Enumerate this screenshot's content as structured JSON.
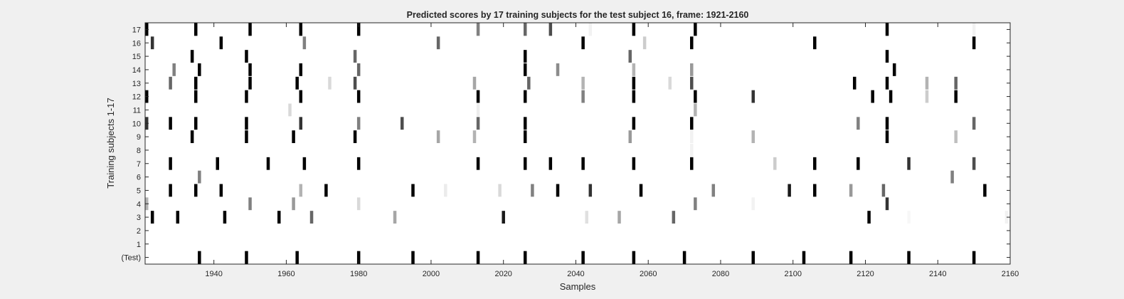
{
  "chart_data": {
    "type": "heatmap",
    "title": "Predicted scores by 17 training subjects for the test subject 16, frame: 1921-2160",
    "xlabel": "Samples",
    "ylabel": "Training subjects 1-17",
    "xlim": [
      1921,
      2160
    ],
    "x_ticks": [
      1940,
      1960,
      1980,
      2000,
      2020,
      2040,
      2060,
      2080,
      2100,
      2120,
      2140,
      2160
    ],
    "rows": [
      "17",
      "16",
      "15",
      "14",
      "13",
      "12",
      "11",
      "10",
      "9",
      "8",
      "7",
      "6",
      "5",
      "4",
      "3",
      "2",
      "1",
      "(Test)"
    ],
    "colormap": "gray, higher score = darker",
    "grid": false,
    "background_color": "#ffffff",
    "figure_color": "#f0f0f0",
    "marks": [
      {
        "row": "17",
        "cells": [
          [
            1921,
            1.0
          ],
          [
            1935,
            1.0
          ],
          [
            1950,
            1.0
          ],
          [
            1964,
            1.0
          ],
          [
            1980,
            1.0
          ],
          [
            2013,
            0.5
          ],
          [
            2026,
            0.6
          ],
          [
            2033,
            0.7
          ],
          [
            2044,
            0.05
          ],
          [
            2056,
            1.0
          ],
          [
            2073,
            1.0
          ],
          [
            2126,
            1.0
          ],
          [
            2150,
            0.05
          ]
        ]
      },
      {
        "row": "16",
        "cells": [
          [
            1923,
            0.8
          ],
          [
            1942,
            1.0
          ],
          [
            1965,
            0.5
          ],
          [
            2002,
            0.6
          ],
          [
            2042,
            1.0
          ],
          [
            2059,
            0.2
          ],
          [
            2072,
            1.0
          ],
          [
            2106,
            1.0
          ],
          [
            2150,
            1.0
          ]
        ]
      },
      {
        "row": "15",
        "cells": [
          [
            1934,
            1.0
          ],
          [
            1949,
            1.0
          ],
          [
            1979,
            0.6
          ],
          [
            2026,
            1.0
          ],
          [
            2055,
            0.6
          ],
          [
            2126,
            1.0
          ]
        ]
      },
      {
        "row": "14",
        "cells": [
          [
            1929,
            0.5
          ],
          [
            1936,
            1.0
          ],
          [
            1950,
            1.0
          ],
          [
            1964,
            1.0
          ],
          [
            1980,
            0.6
          ],
          [
            2026,
            1.0
          ],
          [
            2035,
            0.45
          ],
          [
            2056,
            0.3
          ],
          [
            2072,
            0.4
          ],
          [
            2128,
            1.0
          ]
        ]
      },
      {
        "row": "13",
        "cells": [
          [
            1928,
            0.6
          ],
          [
            1935,
            1.0
          ],
          [
            1950,
            1.0
          ],
          [
            1963,
            1.0
          ],
          [
            1972,
            0.15
          ],
          [
            1979,
            0.7
          ],
          [
            2012,
            0.35
          ],
          [
            2027,
            0.6
          ],
          [
            2042,
            0.3
          ],
          [
            2056,
            1.0
          ],
          [
            2066,
            0.15
          ],
          [
            2072,
            0.7
          ],
          [
            2117,
            1.0
          ],
          [
            2126,
            1.0
          ],
          [
            2137,
            0.3
          ],
          [
            2145,
            0.6
          ]
        ]
      },
      {
        "row": "12",
        "cells": [
          [
            1921,
            1.0
          ],
          [
            1935,
            1.0
          ],
          [
            1949,
            1.0
          ],
          [
            1964,
            1.0
          ],
          [
            1980,
            1.0
          ],
          [
            2013,
            1.0
          ],
          [
            2026,
            1.0
          ],
          [
            2042,
            0.5
          ],
          [
            2056,
            1.0
          ],
          [
            2073,
            1.0
          ],
          [
            2089,
            0.8
          ],
          [
            2122,
            1.0
          ],
          [
            2127,
            1.0
          ],
          [
            2137,
            0.2
          ],
          [
            2145,
            1.0
          ]
        ]
      },
      {
        "row": "11",
        "cells": [
          [
            1961,
            0.15
          ],
          [
            2013,
            0.07
          ],
          [
            2073,
            0.3
          ]
        ]
      },
      {
        "row": "10",
        "cells": [
          [
            1921,
            0.8
          ],
          [
            1928,
            1.0
          ],
          [
            1935,
            1.0
          ],
          [
            1949,
            1.0
          ],
          [
            1964,
            0.8
          ],
          [
            1980,
            0.5
          ],
          [
            1992,
            0.7
          ],
          [
            2013,
            0.6
          ],
          [
            2026,
            1.0
          ],
          [
            2056,
            1.0
          ],
          [
            2072,
            1.0
          ],
          [
            2118,
            0.5
          ],
          [
            2126,
            1.0
          ],
          [
            2150,
            0.6
          ]
        ]
      },
      {
        "row": "9",
        "cells": [
          [
            1934,
            1.0
          ],
          [
            1949,
            1.0
          ],
          [
            1962,
            1.0
          ],
          [
            1979,
            1.0
          ],
          [
            2002,
            0.35
          ],
          [
            2012,
            0.3
          ],
          [
            2026,
            1.0
          ],
          [
            2055,
            0.4
          ],
          [
            2072,
            0.05
          ],
          [
            2089,
            0.3
          ],
          [
            2126,
            1.0
          ],
          [
            2145,
            0.25
          ]
        ]
      },
      {
        "row": "8",
        "cells": [
          [
            2072,
            0.05
          ]
        ]
      },
      {
        "row": "7",
        "cells": [
          [
            1928,
            1.0
          ],
          [
            1941,
            1.0
          ],
          [
            1955,
            1.0
          ],
          [
            1965,
            1.0
          ],
          [
            1980,
            1.0
          ],
          [
            2013,
            1.0
          ],
          [
            2026,
            1.0
          ],
          [
            2033,
            1.0
          ],
          [
            2042,
            1.0
          ],
          [
            2056,
            1.0
          ],
          [
            2072,
            1.0
          ],
          [
            2095,
            0.2
          ],
          [
            2106,
            1.0
          ],
          [
            2118,
            1.0
          ],
          [
            2132,
            0.8
          ],
          [
            2150,
            0.7
          ]
        ]
      },
      {
        "row": "6",
        "cells": [
          [
            1936,
            0.5
          ],
          [
            2144,
            0.5
          ]
        ]
      },
      {
        "row": "5",
        "cells": [
          [
            1928,
            1.0
          ],
          [
            1935,
            1.0
          ],
          [
            1942,
            1.0
          ],
          [
            1964,
            0.3
          ],
          [
            1971,
            1.0
          ],
          [
            1995,
            1.0
          ],
          [
            2004,
            0.08
          ],
          [
            2019,
            0.15
          ],
          [
            2028,
            0.5
          ],
          [
            2035,
            1.0
          ],
          [
            2044,
            0.8
          ],
          [
            2058,
            1.0
          ],
          [
            2078,
            0.5
          ],
          [
            2099,
            0.9
          ],
          [
            2106,
            1.0
          ],
          [
            2116,
            0.4
          ],
          [
            2125,
            0.6
          ],
          [
            2153,
            1.0
          ]
        ]
      },
      {
        "row": "4",
        "cells": [
          [
            1921,
            0.3
          ],
          [
            1950,
            0.5
          ],
          [
            1962,
            0.4
          ],
          [
            1980,
            0.15
          ],
          [
            2073,
            0.5
          ],
          [
            2089,
            0.05
          ],
          [
            2126,
            0.8
          ]
        ]
      },
      {
        "row": "3",
        "cells": [
          [
            1923,
            1.0
          ],
          [
            1930,
            1.0
          ],
          [
            1943,
            1.0
          ],
          [
            1958,
            1.0
          ],
          [
            1967,
            0.6
          ],
          [
            1990,
            0.35
          ],
          [
            2020,
            0.9
          ],
          [
            2043,
            0.12
          ],
          [
            2052,
            0.35
          ],
          [
            2067,
            0.6
          ],
          [
            2121,
            1.0
          ],
          [
            2132,
            0.03
          ],
          [
            2159,
            0.05
          ]
        ]
      },
      {
        "row": "2",
        "cells": []
      },
      {
        "row": "1",
        "cells": []
      },
      {
        "row": "(Test)",
        "cells": [
          [
            1936,
            1.0
          ],
          [
            1949,
            1.0
          ],
          [
            1963,
            1.0
          ],
          [
            1980,
            1.0
          ],
          [
            1995,
            1.0
          ],
          [
            2013,
            1.0
          ],
          [
            2026,
            1.0
          ],
          [
            2042,
            1.0
          ],
          [
            2056,
            1.0
          ],
          [
            2070,
            1.0
          ],
          [
            2089,
            1.0
          ],
          [
            2103,
            1.0
          ],
          [
            2116,
            1.0
          ],
          [
            2132,
            1.0
          ],
          [
            2150,
            1.0
          ]
        ]
      }
    ]
  }
}
